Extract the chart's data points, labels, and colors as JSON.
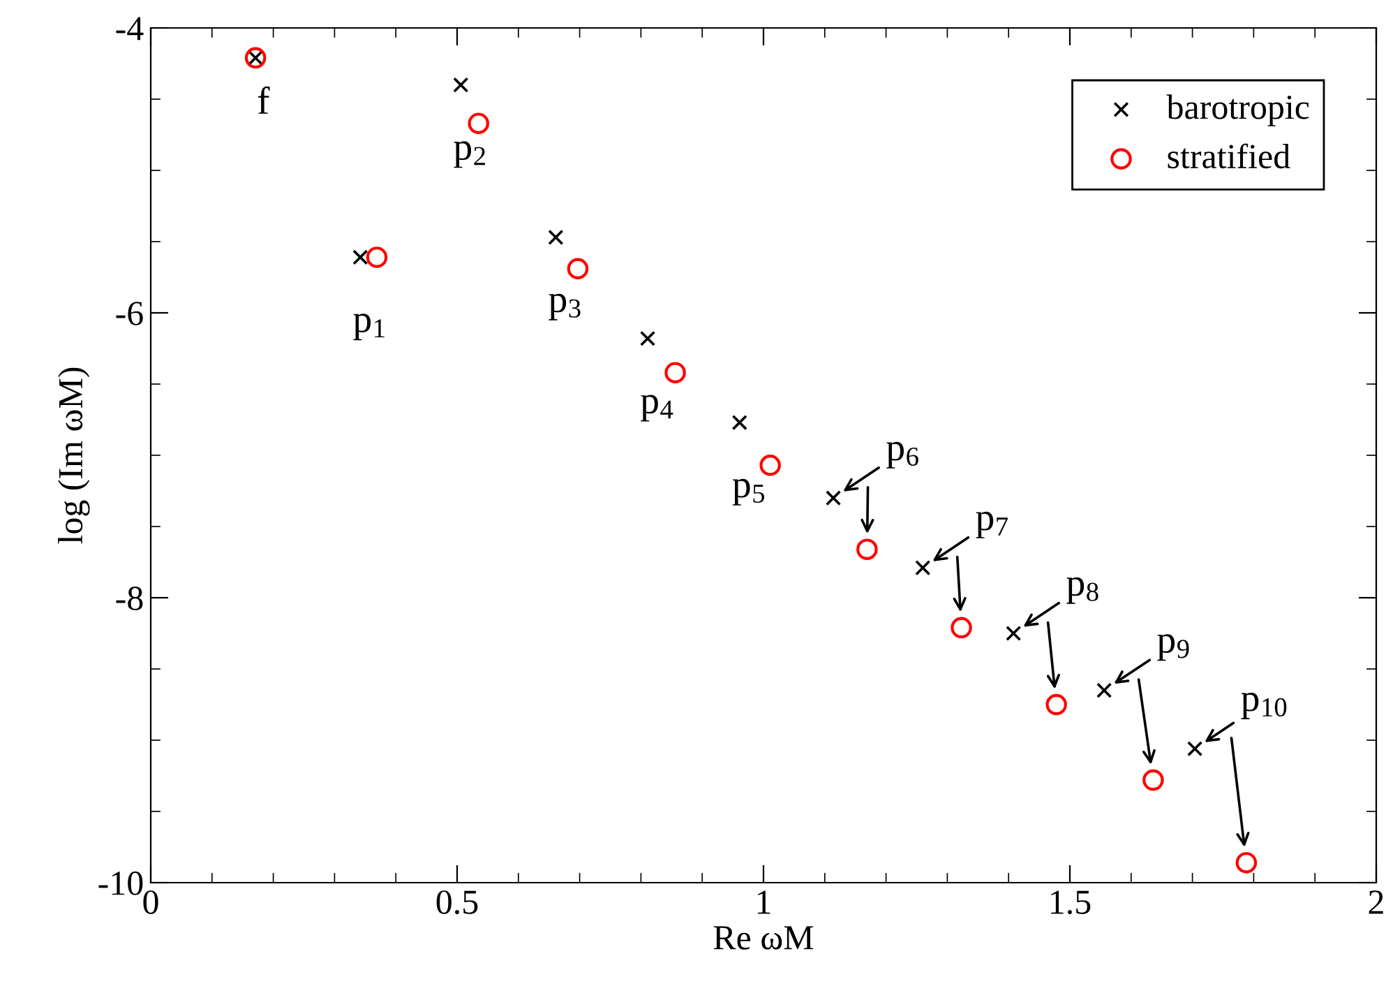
{
  "chart_data": {
    "type": "scatter",
    "xlabel": "Re ωM",
    "ylabel": "log (Im ωM)",
    "x": [
      0.171,
      0.342,
      0.506,
      0.661,
      0.811,
      0.961,
      1.114,
      1.26,
      1.408,
      1.556,
      1.704
    ],
    "series": [
      {
        "name": "barotropic",
        "color": "#000000",
        "marker": "cross",
        "values": [
          -4.21,
          -5.61,
          -4.4,
          -5.47,
          -6.18,
          -6.77,
          -7.3,
          -7.79,
          -8.25,
          -8.65,
          -9.06
        ]
      },
      {
        "name": "stratified",
        "color": "#ff0000",
        "marker": "circle",
        "x": [
          0.171,
          0.369,
          0.535,
          0.697,
          0.856,
          1.011,
          1.169,
          1.323,
          1.478,
          1.636,
          1.788
        ],
        "values": [
          -4.21,
          -5.61,
          -4.67,
          -5.69,
          -6.42,
          -7.07,
          -7.66,
          -8.21,
          -8.75,
          -9.28,
          -9.86
        ]
      }
    ],
    "annotations": [
      {
        "text": "f",
        "x": 0.171,
        "y": -4.21
      },
      {
        "text": "p$_{1}$",
        "x": 0.342,
        "y": -5.61
      },
      {
        "text": "p$_{2}$",
        "x": 0.506,
        "y": -4.4
      },
      {
        "text": "p$_{3}$",
        "x": 0.661,
        "y": -5.47
      },
      {
        "text": "p$_{4}$",
        "x": 0.811,
        "y": -6.18
      },
      {
        "text": "p$_{5}$",
        "x": 0.961,
        "y": -6.77
      },
      {
        "text": "p$_{6}$",
        "x": 1.114,
        "y": -7.3
      },
      {
        "text": "p$_{7}$",
        "x": 1.26,
        "y": -7.79
      },
      {
        "text": "p$_{8}$",
        "x": 1.408,
        "y": -8.25
      },
      {
        "text": "p$_{9}$",
        "x": 1.556,
        "y": -8.65
      },
      {
        "text": "p$_{10}$",
        "x": 1.704,
        "y": -9.06
      }
    ],
    "xlim": [
      0,
      2
    ],
    "xticks": [
      0,
      0.5,
      1,
      1.5,
      2
    ],
    "ylim": [
      -10,
      -4
    ],
    "yticks": [
      -10,
      -8,
      -6,
      -4
    ],
    "grid": false,
    "legend": "top right"
  }
}
